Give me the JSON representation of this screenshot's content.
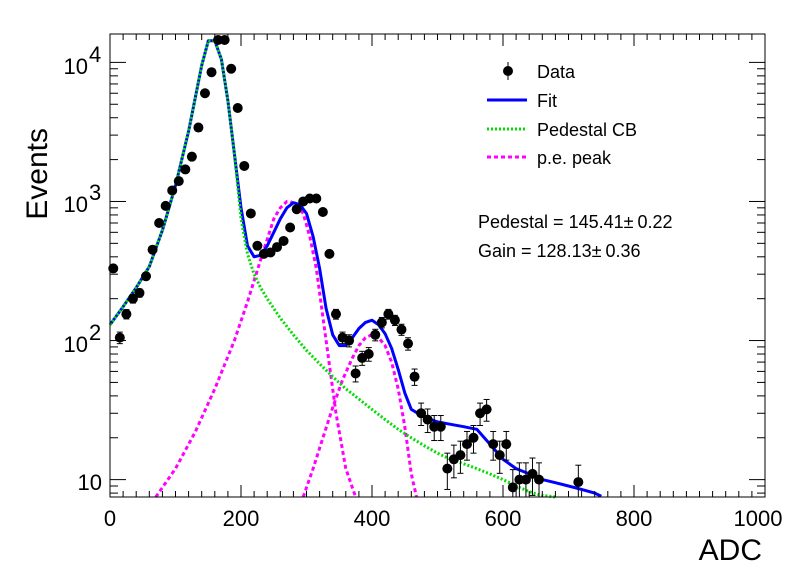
{
  "chart_data": {
    "type": "scatter",
    "xlabel": "ADC",
    "ylabel": "Events",
    "xlim": [
      0,
      1000
    ],
    "ylim": [
      7.5,
      16000
    ],
    "y_scale": "log",
    "grid": false,
    "legend_position": "top-right",
    "x_ticks": [
      "0",
      "200",
      "400",
      "600",
      "800",
      "1000"
    ],
    "y_ticks": [
      {
        "base": "10",
        "exp": "",
        "value": 10
      },
      {
        "base": "10",
        "exp": "2",
        "value": 100
      },
      {
        "base": "10",
        "exp": "3",
        "value": 1000
      },
      {
        "base": "10",
        "exp": "4",
        "value": 10000
      }
    ],
    "legend": [
      {
        "label": "Data",
        "style": "marker",
        "color": "#000000"
      },
      {
        "label": "Fit",
        "style": "solid",
        "color": "#0000ff"
      },
      {
        "label": "Pedestal CB",
        "style": "dotted",
        "color": "#00dd00"
      },
      {
        "label": "p.e. peak",
        "style": "dashed",
        "color": "#ff00ff"
      }
    ],
    "annotations": [
      {
        "text": "Pedestal = 145.41",
        "pm": "0.22"
      },
      {
        "text": "Gain = 128.13",
        "pm": "0.36"
      }
    ],
    "series": [
      {
        "name": "Data",
        "kind": "points",
        "color": "#000000",
        "x": [
          5,
          15,
          25,
          35,
          45,
          55,
          65,
          75,
          85,
          95,
          105,
          115,
          125,
          135,
          145,
          155,
          165,
          175,
          185,
          195,
          205,
          215,
          225,
          235,
          245,
          255,
          265,
          275,
          285,
          295,
          305,
          315,
          325,
          335,
          345,
          355,
          365,
          375,
          385,
          395,
          405,
          415,
          425,
          435,
          445,
          455,
          465,
          475,
          485,
          495,
          505,
          515,
          525,
          535,
          545,
          555,
          565,
          575,
          585,
          595,
          605,
          615,
          625,
          635,
          645,
          655,
          715
        ],
        "y": [
          330,
          105,
          155,
          200,
          220,
          290,
          450,
          700,
          930,
          1200,
          1400,
          1700,
          2100,
          3400,
          6000,
          8500,
          14500,
          14500,
          9000,
          4700,
          1800,
          820,
          480,
          420,
          430,
          470,
          520,
          650,
          880,
          1000,
          1050,
          1050,
          840,
          420,
          155,
          105,
          100,
          58,
          75,
          80,
          110,
          135,
          155,
          140,
          120,
          95,
          55,
          30,
          27,
          24,
          24,
          12,
          14,
          15,
          18,
          20,
          30,
          32,
          18,
          15,
          18,
          8.8,
          10,
          10,
          11,
          10,
          9.6
        ],
        "err": [
          18,
          10,
          12,
          14,
          15,
          17,
          21,
          26,
          30,
          35,
          37,
          41,
          46,
          58,
          77,
          92,
          120,
          120,
          95,
          69,
          42,
          29,
          22,
          21,
          21,
          22,
          23,
          26,
          30,
          32,
          32,
          32,
          29,
          21,
          12.5,
          10,
          10,
          7.6,
          8.7,
          9,
          10.5,
          11.6,
          12.5,
          11.8,
          11,
          9.7,
          7.4,
          5.5,
          5.2,
          4.9,
          4.9,
          3.5,
          3.7,
          3.9,
          4.2,
          4.5,
          5.5,
          5.7,
          4.2,
          3.9,
          4.2,
          3,
          3.2,
          3.2,
          3.3,
          3.2,
          3.1
        ]
      },
      {
        "name": "Fit",
        "kind": "line",
        "color": "#0000ff",
        "x": [
          0,
          20,
          40,
          60,
          80,
          100,
          120,
          140,
          150,
          160,
          170,
          180,
          190,
          200,
          210,
          220,
          230,
          240,
          250,
          260,
          270,
          280,
          290,
          300,
          310,
          320,
          330,
          340,
          350,
          360,
          370,
          380,
          390,
          400,
          410,
          420,
          430,
          440,
          450,
          460,
          470,
          480,
          490,
          500,
          520,
          540,
          560,
          580,
          600,
          620,
          640,
          660,
          680,
          700,
          720,
          740,
          750
        ],
        "y": [
          130,
          175,
          240,
          340,
          620,
          1300,
          3200,
          9500,
          14300,
          14300,
          10500,
          5300,
          2200,
          900,
          480,
          400,
          410,
          480,
          600,
          750,
          900,
          980,
          950,
          820,
          560,
          330,
          170,
          110,
          92,
          92,
          105,
          122,
          135,
          140,
          130,
          112,
          88,
          62,
          42,
          32,
          30,
          28,
          27,
          26,
          25,
          24,
          23,
          18,
          14,
          12,
          11,
          10,
          9.5,
          9,
          8.5,
          8,
          7.6
        ]
      },
      {
        "name": "Pedestal CB",
        "kind": "line",
        "color": "#00dd00",
        "x": [
          0,
          20,
          40,
          60,
          80,
          100,
          120,
          140,
          150,
          160,
          170,
          180,
          190,
          200,
          210,
          220,
          230,
          240,
          250,
          260,
          280,
          300,
          320,
          340,
          360,
          380,
          400,
          420,
          440,
          460,
          480,
          500,
          520,
          540,
          560,
          580,
          600,
          620,
          640,
          650,
          660,
          680
        ],
        "y": [
          130,
          175,
          240,
          340,
          620,
          1300,
          3200,
          9500,
          14300,
          14300,
          10500,
          5300,
          2200,
          750,
          420,
          300,
          240,
          200,
          170,
          145,
          110,
          85,
          68,
          55,
          45,
          38,
          32,
          27,
          23,
          20,
          17.5,
          15.5,
          14,
          13,
          12,
          11,
          10,
          9,
          8.2,
          7.9,
          7.7,
          7.2
        ]
      },
      {
        "name": "p.e. peak",
        "kind": "line",
        "color": "#ff00ff",
        "x": [
          70,
          100,
          130,
          160,
          190,
          210,
          230,
          250,
          260,
          270,
          275,
          285,
          295,
          305,
          315,
          330,
          345,
          360,
          375
        ],
        "y": [
          7.5,
          12,
          22,
          45,
          100,
          190,
          380,
          750,
          900,
          1000,
          1000,
          950,
          820,
          560,
          330,
          100,
          30,
          12,
          7.5
        ]
      },
      {
        "name": "p.e. peak (2)",
        "kind": "line",
        "color": "#ff00ff",
        "x": [
          295,
          310,
          325,
          340,
          355,
          370,
          380,
          390,
          400,
          405,
          410,
          420,
          430,
          440,
          450,
          460,
          468
        ],
        "y": [
          7.5,
          12,
          20,
          33,
          52,
          75,
          92,
          105,
          110,
          110,
          105,
          92,
          70,
          45,
          24,
          11,
          7.5
        ]
      }
    ]
  }
}
